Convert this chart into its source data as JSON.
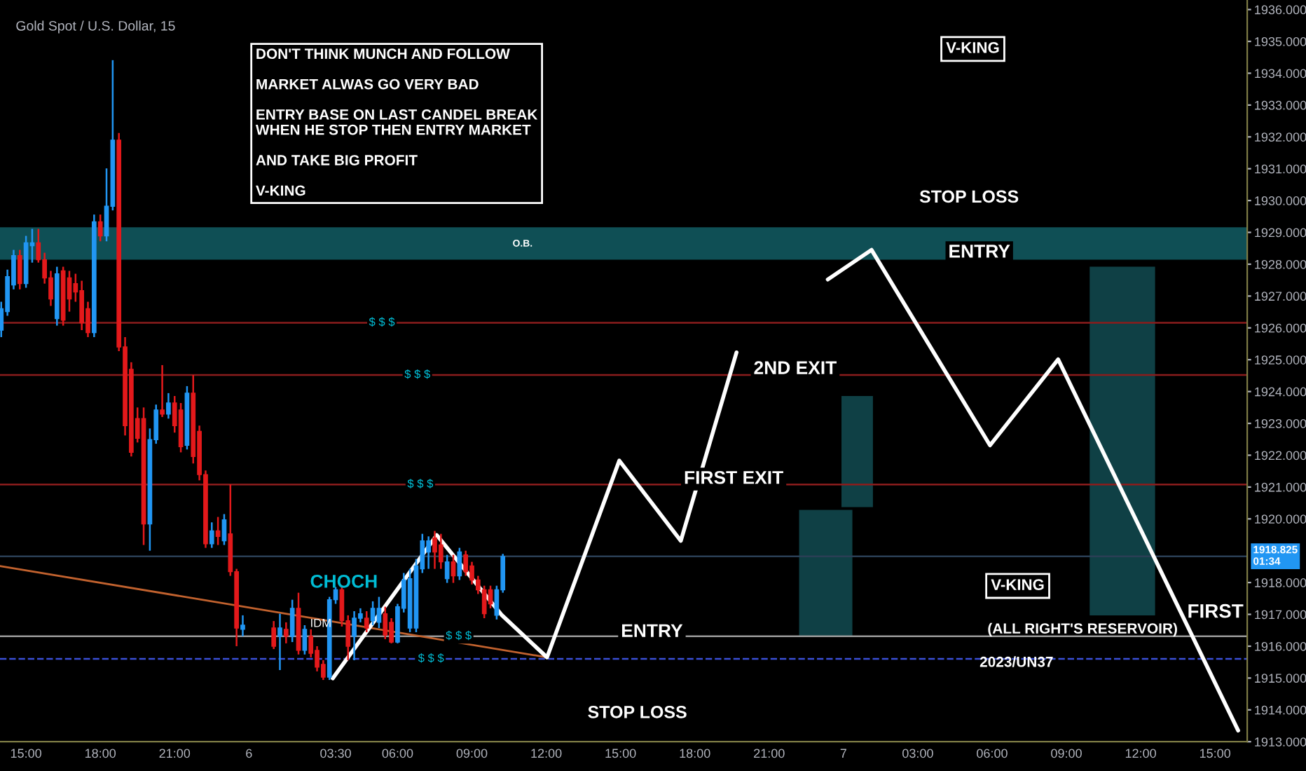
{
  "chart_data": {
    "type": "candlestick",
    "title": "Gold Spot / U.S. Dollar, 15",
    "x": [
      "2023-06-05T14:00",
      "2023-06-05T14:15",
      "2023-06-05T14:30",
      "2023-06-05T14:45",
      "2023-06-05T15:00",
      "2023-06-05T15:15",
      "2023-06-05T15:30",
      "2023-06-05T15:45",
      "2023-06-05T16:00",
      "2023-06-05T16:15",
      "2023-06-05T16:30",
      "2023-06-05T16:45",
      "2023-06-05T17:00",
      "2023-06-05T17:15",
      "2023-06-05T17:30",
      "2023-06-05T17:45",
      "2023-06-05T18:00",
      "2023-06-05T18:15",
      "2023-06-05T18:30",
      "2023-06-05T18:45",
      "2023-06-05T19:00",
      "2023-06-05T19:15",
      "2023-06-05T19:30",
      "2023-06-05T19:45",
      "2023-06-05T20:00",
      "2023-06-05T20:15",
      "2023-06-05T20:30",
      "2023-06-05T20:45",
      "2023-06-05T21:00",
      "2023-06-05T21:15",
      "2023-06-05T21:30",
      "2023-06-05T21:45",
      "2023-06-05T22:00",
      "2023-06-05T22:15",
      "2023-06-05T22:30",
      "2023-06-05T22:45",
      "2023-06-05T23:00",
      "2023-06-05T23:15",
      "2023-06-05T23:30",
      "2023-06-05T23:45",
      "2023-06-06T01:00",
      "2023-06-06T01:15",
      "2023-06-06T01:30",
      "2023-06-06T01:45",
      "2023-06-06T02:00",
      "2023-06-06T02:15",
      "2023-06-06T02:30",
      "2023-06-06T02:45",
      "2023-06-06T03:00",
      "2023-06-06T03:15",
      "2023-06-06T03:30",
      "2023-06-06T03:45",
      "2023-06-06T04:00",
      "2023-06-06T04:15",
      "2023-06-06T04:30",
      "2023-06-06T04:45",
      "2023-06-06T05:00",
      "2023-06-06T05:15",
      "2023-06-06T05:30",
      "2023-06-06T05:45",
      "2023-06-06T06:00",
      "2023-06-06T06:15",
      "2023-06-06T06:30",
      "2023-06-06T06:45",
      "2023-06-06T07:00",
      "2023-06-06T07:15",
      "2023-06-06T07:30",
      "2023-06-06T07:45",
      "2023-06-06T08:00",
      "2023-06-06T08:15",
      "2023-06-06T08:30",
      "2023-06-06T08:45",
      "2023-06-06T09:00",
      "2023-06-06T09:15",
      "2023-06-06T09:30",
      "2023-06-06T09:45",
      "2023-06-06T10:00",
      "2023-06-06T10:15"
    ],
    "ohlc": [
      [
        1925.93,
        1926.82,
        1925.71,
        1926.6
      ],
      [
        1926.51,
        1927.83,
        1926.38,
        1927.61
      ],
      [
        1927.35,
        1928.45,
        1927.21,
        1928.27
      ],
      [
        1928.27,
        1928.45,
        1927.21,
        1927.39
      ],
      [
        1927.39,
        1928.89,
        1927.26,
        1928.67
      ],
      [
        1928.58,
        1929.11,
        1928.05,
        1928.67
      ],
      [
        1928.67,
        1929.11,
        1928.05,
        1928.14
      ],
      [
        1928.14,
        1928.36,
        1927.39,
        1927.57
      ],
      [
        1927.57,
        1927.79,
        1926.69,
        1926.91
      ],
      [
        1926.29,
        1927.92,
        1926.07,
        1927.7
      ],
      [
        1927.79,
        1927.92,
        1926.07,
        1926.24
      ],
      [
        1927.57,
        1927.79,
        1926.51,
        1926.91
      ],
      [
        1927.39,
        1927.7,
        1926.82,
        1927.13
      ],
      [
        1927.17,
        1927.48,
        1925.93,
        1926.16
      ],
      [
        1926.6,
        1926.82,
        1925.71,
        1925.85
      ],
      [
        1925.85,
        1929.56,
        1925.71,
        1929.33
      ],
      [
        1929.33,
        1929.56,
        1928.72,
        1928.89
      ],
      [
        1928.89,
        1931.01,
        1928.72,
        1929.82
      ],
      [
        1929.82,
        1934.41,
        1929.69,
        1931.9
      ],
      [
        1931.9,
        1932.12,
        1925.27,
        1925.4
      ],
      [
        1925.4,
        1925.71,
        1922.62,
        1922.93
      ],
      [
        1924.7,
        1924.92,
        1921.96,
        1922.09
      ],
      [
        1923.15,
        1923.5,
        1922.4,
        1922.53
      ],
      [
        1923.15,
        1923.5,
        1919.18,
        1919.84
      ],
      [
        1919.84,
        1922.84,
        1919.0,
        1922.49
      ],
      [
        1922.49,
        1923.59,
        1922.36,
        1923.42
      ],
      [
        1923.42,
        1924.83,
        1923.2,
        1923.29
      ],
      [
        1923.29,
        1923.95,
        1923.15,
        1923.64
      ],
      [
        1923.64,
        1923.86,
        1922.71,
        1922.93
      ],
      [
        1923.42,
        1923.64,
        1922.09,
        1922.27
      ],
      [
        1922.31,
        1924.17,
        1922.18,
        1923.95
      ],
      [
        1923.95,
        1924.52,
        1921.74,
        1921.96
      ],
      [
        1922.75,
        1922.93,
        1921.21,
        1921.39
      ],
      [
        1921.39,
        1921.52,
        1919.09,
        1919.22
      ],
      [
        1919.22,
        1919.89,
        1919.09,
        1919.62
      ],
      [
        1919.62,
        1920.06,
        1919.18,
        1919.45
      ],
      [
        1919.31,
        1920.15,
        1919.18,
        1919.97
      ],
      [
        1919.53,
        1921.08,
        1918.21,
        1918.34
      ],
      [
        1918.34,
        1918.43,
        1916.0,
        1916.57
      ],
      [
        1916.53,
        1916.97,
        1916.31,
        1916.66
      ],
      [
        1916.57,
        1916.79,
        1915.91,
        1916.0
      ],
      [
        1916.31,
        1917.02,
        1915.25,
        1916.57
      ],
      [
        1916.53,
        1916.75,
        1916.09,
        1916.31
      ],
      [
        1916.31,
        1917.46,
        1916.13,
        1917.19
      ],
      [
        1917.19,
        1917.68,
        1915.74,
        1915.87
      ],
      [
        1915.87,
        1916.66,
        1915.74,
        1916.53
      ],
      [
        1916.31,
        1916.53,
        1915.65,
        1915.78
      ],
      [
        1915.87,
        1916.0,
        1915.21,
        1915.34
      ],
      [
        1915.43,
        1915.56,
        1914.94,
        1915.03
      ],
      [
        1915.03,
        1917.55,
        1914.94,
        1917.46
      ],
      [
        1917.46,
        1917.86,
        1917.33,
        1917.77
      ],
      [
        1917.77,
        1917.86,
        1916.62,
        1916.8
      ],
      [
        1916.8,
        1916.97,
        1915.56,
        1916.0
      ],
      [
        1916.31,
        1917.1,
        1915.56,
        1916.88
      ],
      [
        1916.88,
        1917.19,
        1916.75,
        1917.02
      ],
      [
        1916.88,
        1917.1,
        1916.44,
        1916.57
      ],
      [
        1916.8,
        1917.41,
        1916.66,
        1917.19
      ],
      [
        1916.75,
        1917.55,
        1916.57,
        1917.19
      ],
      [
        1917.02,
        1917.24,
        1916.22,
        1916.35
      ],
      [
        1916.75,
        1916.88,
        1916.09,
        1916.13
      ],
      [
        1916.13,
        1917.33,
        1916.09,
        1917.24
      ],
      [
        1917.19,
        1918.3,
        1917.06,
        1918.08
      ],
      [
        1916.57,
        1918.43,
        1916.44,
        1918.12
      ],
      [
        1916.57,
        1918.74,
        1916.44,
        1918.52
      ],
      [
        1918.43,
        1919.53,
        1918.3,
        1919.31
      ],
      [
        1918.96,
        1919.45,
        1918.43,
        1919.31
      ],
      [
        1919.4,
        1919.62,
        1918.43,
        1918.96
      ],
      [
        1919.18,
        1919.53,
        1918.43,
        1918.65
      ],
      [
        1918.12,
        1918.87,
        1917.99,
        1918.65
      ],
      [
        1918.65,
        1918.87,
        1917.99,
        1918.21
      ],
      [
        1918.21,
        1919.09,
        1918.08,
        1918.96
      ],
      [
        1918.87,
        1919.0,
        1918.21,
        1918.34
      ],
      [
        1918.52,
        1918.65,
        1917.94,
        1918.08
      ],
      [
        1918.08,
        1918.21,
        1917.64,
        1917.77
      ],
      [
        1917.77,
        1917.9,
        1916.88,
        1917.02
      ],
      [
        1917.77,
        1917.9,
        1917.19,
        1917.33
      ],
      [
        1916.97,
        1917.9,
        1916.84,
        1917.77
      ],
      [
        1917.77,
        1918.9,
        1917.68,
        1918.82
      ]
    ],
    "colors": [
      "#2196f3",
      "#2196f3",
      "#2196f3",
      "#e3191b",
      "#2196f3",
      "#2196f3",
      "#e3191b",
      "#e3191b",
      "#e3191b",
      "#2196f3",
      "#e3191b",
      "#e3191b",
      "#e3191b",
      "#e3191b",
      "#e3191b",
      "#2196f3",
      "#e3191b",
      "#2196f3",
      "#2196f3",
      "#e3191b",
      "#e3191b",
      "#e3191b",
      "#e3191b",
      "#e3191b",
      "#2196f3",
      "#2196f3",
      "#e3191b",
      "#2196f3",
      "#e3191b",
      "#e3191b",
      "#2196f3",
      "#e3191b",
      "#e3191b",
      "#e3191b",
      "#2196f3",
      "#e3191b",
      "#2196f3",
      "#e3191b",
      "#e3191b",
      "#2196f3",
      "#e3191b",
      "#2196f3",
      "#e3191b",
      "#2196f3",
      "#e3191b",
      "#2196f3",
      "#e3191b",
      "#e3191b",
      "#e3191b",
      "#2196f3",
      "#2196f3",
      "#e3191b",
      "#e3191b",
      "#2196f3",
      "#2196f3",
      "#e3191b",
      "#2196f3",
      "#2196f3",
      "#e3191b",
      "#e3191b",
      "#2196f3",
      "#2196f3",
      "#2196f3",
      "#2196f3",
      "#2196f3",
      "#2196f3",
      "#e3191b",
      "#e3191b",
      "#2196f3",
      "#e3191b",
      "#2196f3",
      "#e3191b",
      "#e3191b",
      "#e3191b",
      "#e3191b",
      "#e3191b",
      "#2196f3",
      "#2196f3"
    ],
    "series": [
      {
        "type": "line",
        "color": "#c2622e",
        "x": [
          "2023-06-05T13:57",
          "2023-06-06T12:02"
        ],
        "values": [
          1918.52,
          1915.65
        ]
      },
      {
        "type": "line",
        "color": "#ffffff",
        "x": [
          "2023-06-06T03:23",
          "2023-06-06T07:35",
          "2023-06-06T10:13",
          "2023-06-06T12:02",
          "2023-06-06T14:57",
          "2023-06-06T17:26",
          "2023-06-06T19:41"
        ],
        "values": [
          1914.99,
          1919.49,
          1916.97,
          1915.65,
          1921.83,
          1919.31,
          1925.23
        ]
      },
      {
        "type": "line",
        "color": "#ffffff",
        "x": [
          "2023-06-06T23:22",
          "2023-06-07T01:08",
          "2023-06-07T05:55",
          "2023-06-07T08:40",
          "2023-06-07T15:56"
        ],
        "values": [
          1927.52,
          1928.45,
          1922.31,
          1925.01,
          1913.35
        ]
      }
    ],
    "xlim": [
      "2023-06-05T13:57",
      "2023-06-07T16:18"
    ],
    "ylim": [
      1913.0,
      1936.3
    ],
    "xticks": [
      {
        "value": "2023-06-05T15:00",
        "label": "15:00"
      },
      {
        "value": "2023-06-05T18:00",
        "label": "18:00"
      },
      {
        "value": "2023-06-05T21:00",
        "label": "21:00"
      },
      {
        "value": "2023-06-06T00:00",
        "label": "6"
      },
      {
        "value": "2023-06-06T03:30",
        "label": "03:30"
      },
      {
        "value": "2023-06-06T06:00",
        "label": "06:00"
      },
      {
        "value": "2023-06-06T09:00",
        "label": "09:00"
      },
      {
        "value": "2023-06-06T12:00",
        "label": "12:00"
      },
      {
        "value": "2023-06-06T15:00",
        "label": "15:00"
      },
      {
        "value": "2023-06-06T18:00",
        "label": "18:00"
      },
      {
        "value": "2023-06-06T21:00",
        "label": "21:00"
      },
      {
        "value": "2023-06-07T00:00",
        "label": "7"
      },
      {
        "value": "2023-06-07T03:00",
        "label": "03:00"
      },
      {
        "value": "2023-06-07T06:00",
        "label": "06:00"
      },
      {
        "value": "2023-06-07T09:00",
        "label": "09:00"
      },
      {
        "value": "2023-06-07T12:00",
        "label": "12:00"
      },
      {
        "value": "2023-06-07T15:00",
        "label": "15:00"
      }
    ],
    "yticks": [
      {
        "value": 1913,
        "label": "1913.000"
      },
      {
        "value": 1914,
        "label": "1914.000"
      },
      {
        "value": 1915,
        "label": "1915.000"
      },
      {
        "value": 1916,
        "label": "1916.000"
      },
      {
        "value": 1917,
        "label": "1917.000"
      },
      {
        "value": 1918,
        "label": "1918.000"
      },
      {
        "value": 1920,
        "label": "1920.000"
      },
      {
        "value": 1921,
        "label": "1921.000"
      },
      {
        "value": 1922,
        "label": "1922.000"
      },
      {
        "value": 1923,
        "label": "1923.000"
      },
      {
        "value": 1924,
        "label": "1924.000"
      },
      {
        "value": 1925,
        "label": "1925.000"
      },
      {
        "value": 1926,
        "label": "1926.000"
      },
      {
        "value": 1927,
        "label": "1927.000"
      },
      {
        "value": 1928,
        "label": "1928.000"
      },
      {
        "value": 1929,
        "label": "1929.000"
      },
      {
        "value": 1930,
        "label": "1930.000"
      },
      {
        "value": 1931,
        "label": "1931.000"
      },
      {
        "value": 1932,
        "label": "1932.000"
      },
      {
        "value": 1933,
        "label": "1933.000"
      },
      {
        "value": 1934,
        "label": "1934.000"
      },
      {
        "value": 1935,
        "label": "1935.000"
      },
      {
        "value": 1936,
        "label": "1936.000"
      }
    ],
    "ref_lines": [
      {
        "axis": "y",
        "value": 1926.16,
        "color": "#8b1c1c"
      },
      {
        "axis": "y",
        "value": 1924.52,
        "color": "#8b1c1c"
      },
      {
        "axis": "y",
        "value": 1921.08,
        "color": "#8b1c1c"
      },
      {
        "axis": "y",
        "value": 1916.31,
        "color": "#9a9a9a"
      },
      {
        "axis": "y",
        "value": 1915.6,
        "color": "#3b4fd6",
        "line_style": "dashed"
      },
      {
        "axis": "y",
        "value": 1918.825,
        "color": "#2a3f55",
        "label": "1918.825\n01:34"
      }
    ],
    "bands": [
      {
        "axis": "y",
        "from": 1928.14,
        "to": 1929.16,
        "color": "#0f4f55"
      }
    ],
    "annotations": [
      "DON'T THINK MUNCH AND FOLLOW\n\nMARKET ALWAS GO VERY BAD\n\nENTRY BASE ON LAST CANDEL BREAK\nWHEN HE STOP THEN ENTRY MARKET\n\nAND TAKE BIG PROFIT\n\nV-KING",
      "V-KING",
      "V-KING",
      "(ALL RIGHT'S RESERVOIR)",
      "2023/UN37",
      "FIRST",
      "O.B.",
      "STOP LOSS",
      "STOP LOSS",
      {
        "text": "ENTRY",
        "x": "2023-06-07T05:29",
        "y": 1928.36
      },
      {
        "text": "2ND EXIT",
        "x": "2023-06-06T22:03",
        "y": 1924.7
      },
      {
        "text": "FIRST EXIT",
        "x": "2023-06-06T19:34",
        "y": 1921.25
      },
      {
        "text": "ENTRY",
        "x": "2023-06-06T16:16",
        "y": 1916.44
      },
      {
        "text": "CHOCH",
        "x": "2023-06-06T03:50",
        "y": 1917.99
      },
      {
        "text": "IDM",
        "x": "2023-06-06T02:54",
        "y": 1916.7
      },
      {
        "text": "$ $ $",
        "x": "2023-06-06T05:22",
        "y": 1926.16
      },
      {
        "text": "$ $ $",
        "x": "2023-06-06T06:48",
        "y": 1924.52
      },
      {
        "text": "$ $ $",
        "x": "2023-06-06T06:55",
        "y": 1921.08
      },
      {
        "text": "$ $ $",
        "x": "2023-06-06T08:28",
        "y": 1916.31
      },
      {
        "text": "$ $ $",
        "x": "2023-06-06T07:21",
        "y": 1915.6
      }
    ]
  }
}
